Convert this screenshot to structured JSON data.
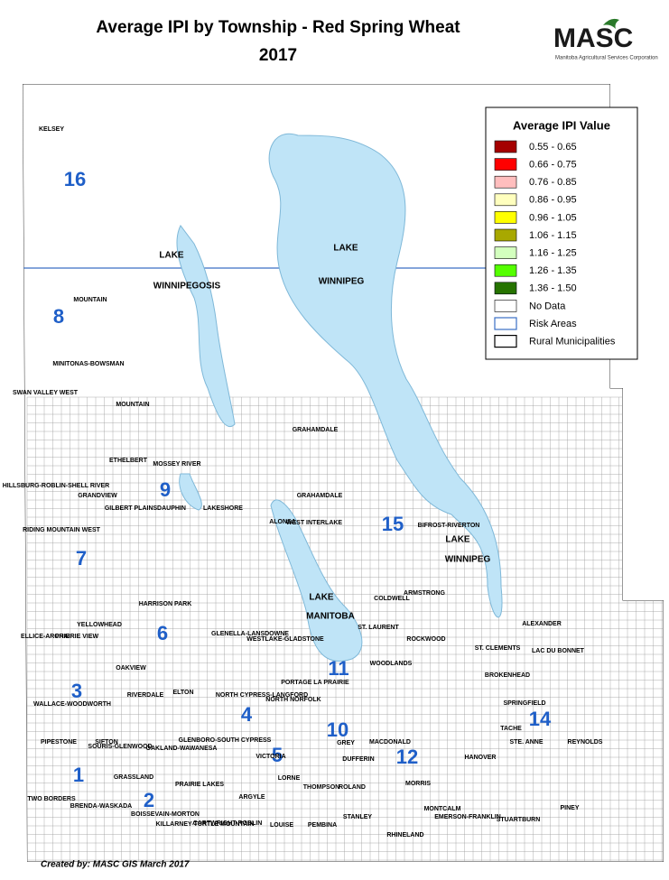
{
  "header": {
    "title": "Average IPI by Township - Red Spring Wheat",
    "year": "2017"
  },
  "logo": {
    "name": "MASC",
    "subtitle": "Manitoba Agricultural Services Corporation"
  },
  "legend": {
    "title": "Average IPI Value",
    "items": [
      {
        "label": "0.55 - 0.65",
        "color": "#a50000"
      },
      {
        "label": "0.66 - 0.75",
        "color": "#ff0000"
      },
      {
        "label": "0.76 - 0.85",
        "color": "#ffbebe"
      },
      {
        "label": "0.86 - 0.95",
        "color": "#ffffbe"
      },
      {
        "label": "0.96 - 1.05",
        "color": "#ffff00"
      },
      {
        "label": "1.06 - 1.15",
        "color": "#a8a800"
      },
      {
        "label": "1.16 - 1.25",
        "color": "#d3ffbe"
      },
      {
        "label": "1.26 - 1.35",
        "color": "#55ff00"
      },
      {
        "label": "1.36 - 1.50",
        "color": "#267300"
      },
      {
        "label": "No Data",
        "color": "#ffffff"
      },
      {
        "label": "Risk Areas",
        "color": "#ffffff",
        "outline": "#3a6fc4"
      },
      {
        "label": "Rural Municipalities",
        "color": "#ffffff",
        "outline": "#000000"
      }
    ]
  },
  "map": {
    "lakes": [
      "LAKE",
      "WINNIPEG",
      "LAKE",
      "WINNIPEGOSIS",
      "LAKE",
      "WINNIPEG",
      "LAKE",
      "MANITOBA"
    ],
    "risk_areas": [
      "16",
      "8",
      "9",
      "15",
      "7",
      "6",
      "3",
      "11",
      "4",
      "10",
      "12",
      "14",
      "5",
      "1",
      "2"
    ],
    "municipalities": [
      "KELSEY",
      "MOUNTAIN",
      "MINITONAS-BOWSMAN",
      "SWAN VALLEY WEST",
      "MOUNTAIN",
      "ETHELBERT",
      "MOSSEY RIVER",
      "HILLSBURG-ROBLIN-SHELL RIVER",
      "GILBERT PLAINS",
      "DAUPHIN",
      "LAKESHORE",
      "GRANDVIEW",
      "RIDING MOUNTAIN WEST",
      "GRAHAMDALE",
      "GRAHAMDALE",
      "ALONSA",
      "WEST INTERLAKE",
      "BIFROST-RIVERTON",
      "COLDWELL",
      "ARMSTRONG",
      "HARRISON PARK",
      "YELLOWHEAD",
      "PRAIRIE VIEW",
      "ELLICE-ARCHIE",
      "WESTLAKE-GLADSTONE",
      "GLENELLA-LANSDOWNE",
      "ST. LAURENT",
      "ALEXANDER",
      "WOODLANDS",
      "ROCKWOOD",
      "OAKVIEW",
      "ST. CLEMENTS",
      "LAC DU BONNET",
      "WALLACE-WOODWORTH",
      "RIVERDALE",
      "ELTON",
      "NORTH CYPRESS-LANGFORD",
      "NORTH NORFOLK",
      "PORTAGE LA PRAIRIE",
      "BROKENHEAD",
      "SPRINGFIELD",
      "PIPESTONE",
      "SIFTON",
      "SOURIS-GLENWOOD",
      "OAKLAND-WAWANESA",
      "GLENBORO-SOUTH CYPRESS",
      "VICTORIA",
      "GREY",
      "MACDONALD",
      "TACHE",
      "STE. ANNE",
      "REYNOLDS",
      "GRASSLAND",
      "PRAIRIE LAKES",
      "ARGYLE",
      "LORNE",
      "DUFFERIN",
      "MORRIS",
      "HANOVER",
      "TWO BORDERS",
      "LOUISE",
      "PEMBINA",
      "STANLEY",
      "RHINELAND",
      "MONTCALM",
      "EMERSON-FRANKLIN",
      "STUARTBURN",
      "PINEY",
      "KILLARNEY-TURTLE MOUNTAIN",
      "CARTWRIGHT-ROBLIN",
      "BOISSEVAIN-MORTON",
      "BRENDA-WASKADA",
      "THOMPSON",
      "ROLAND"
    ]
  },
  "footer": "Created by: MASC GIS  March 2017"
}
